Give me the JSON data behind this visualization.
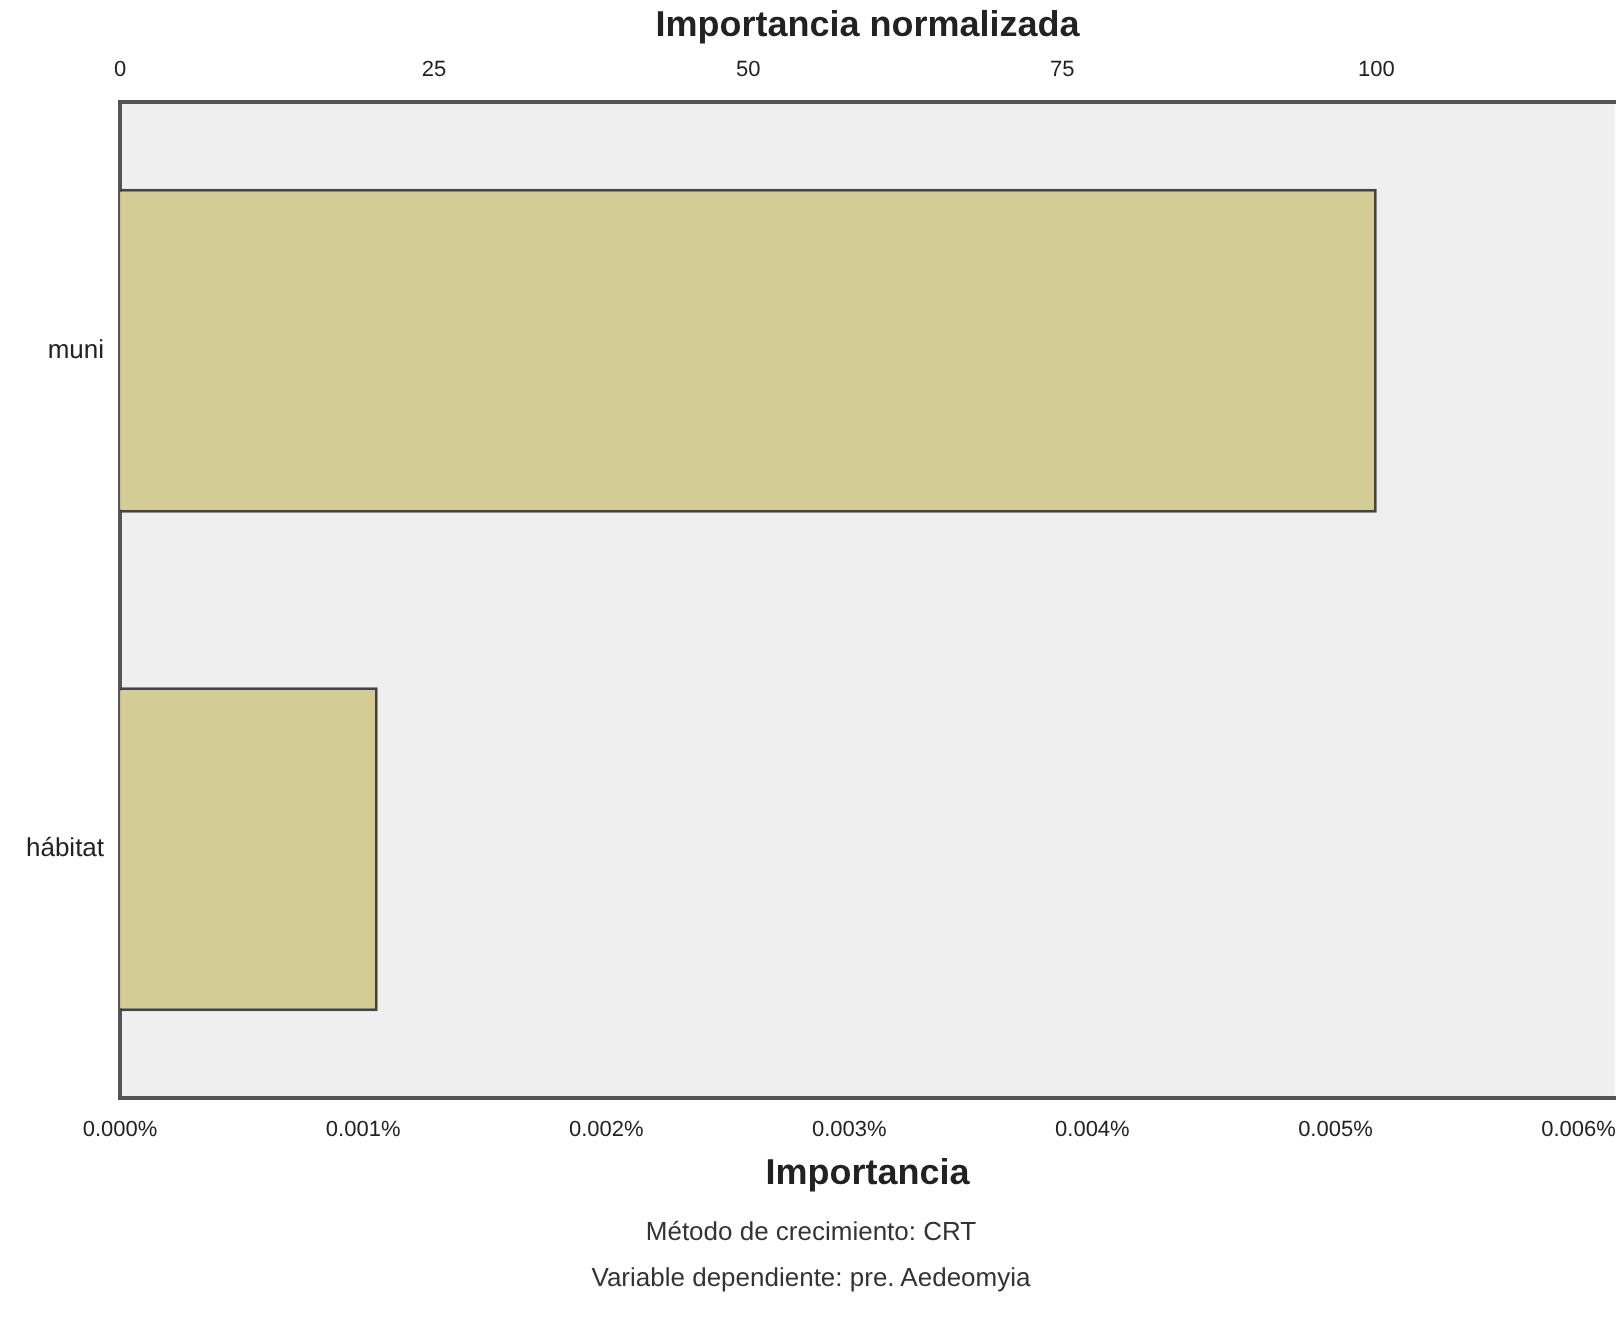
{
  "chart_data": {
    "type": "bar",
    "orientation": "horizontal",
    "x2label": "Importancia normalizada",
    "xlabel": "Importancia",
    "categories": [
      "muni",
      "hábitat"
    ],
    "values": [
      0.00517,
      0.00106
    ],
    "color": "#d3cd95",
    "xlim": [
      0,
      0.00615
    ],
    "xticks": [
      {
        "value": 0,
        "label": "0.000%"
      },
      {
        "value": 0.001,
        "label": "0.001%"
      },
      {
        "value": 0.002,
        "label": "0.002%"
      },
      {
        "value": 0.003,
        "label": "0.003%"
      },
      {
        "value": 0.004,
        "label": "0.004%"
      },
      {
        "value": 0.005,
        "label": "0.005%"
      },
      {
        "value": 0.006,
        "label": "0.006%"
      }
    ],
    "x2lim": [
      0,
      119
    ],
    "x2ticks": [
      0,
      25,
      50,
      75,
      100
    ],
    "grid": false,
    "legend": false,
    "annotations": [
      "Método de crecimiento: CRT",
      "Variable dependiente: pre. Aedeomyia"
    ]
  }
}
